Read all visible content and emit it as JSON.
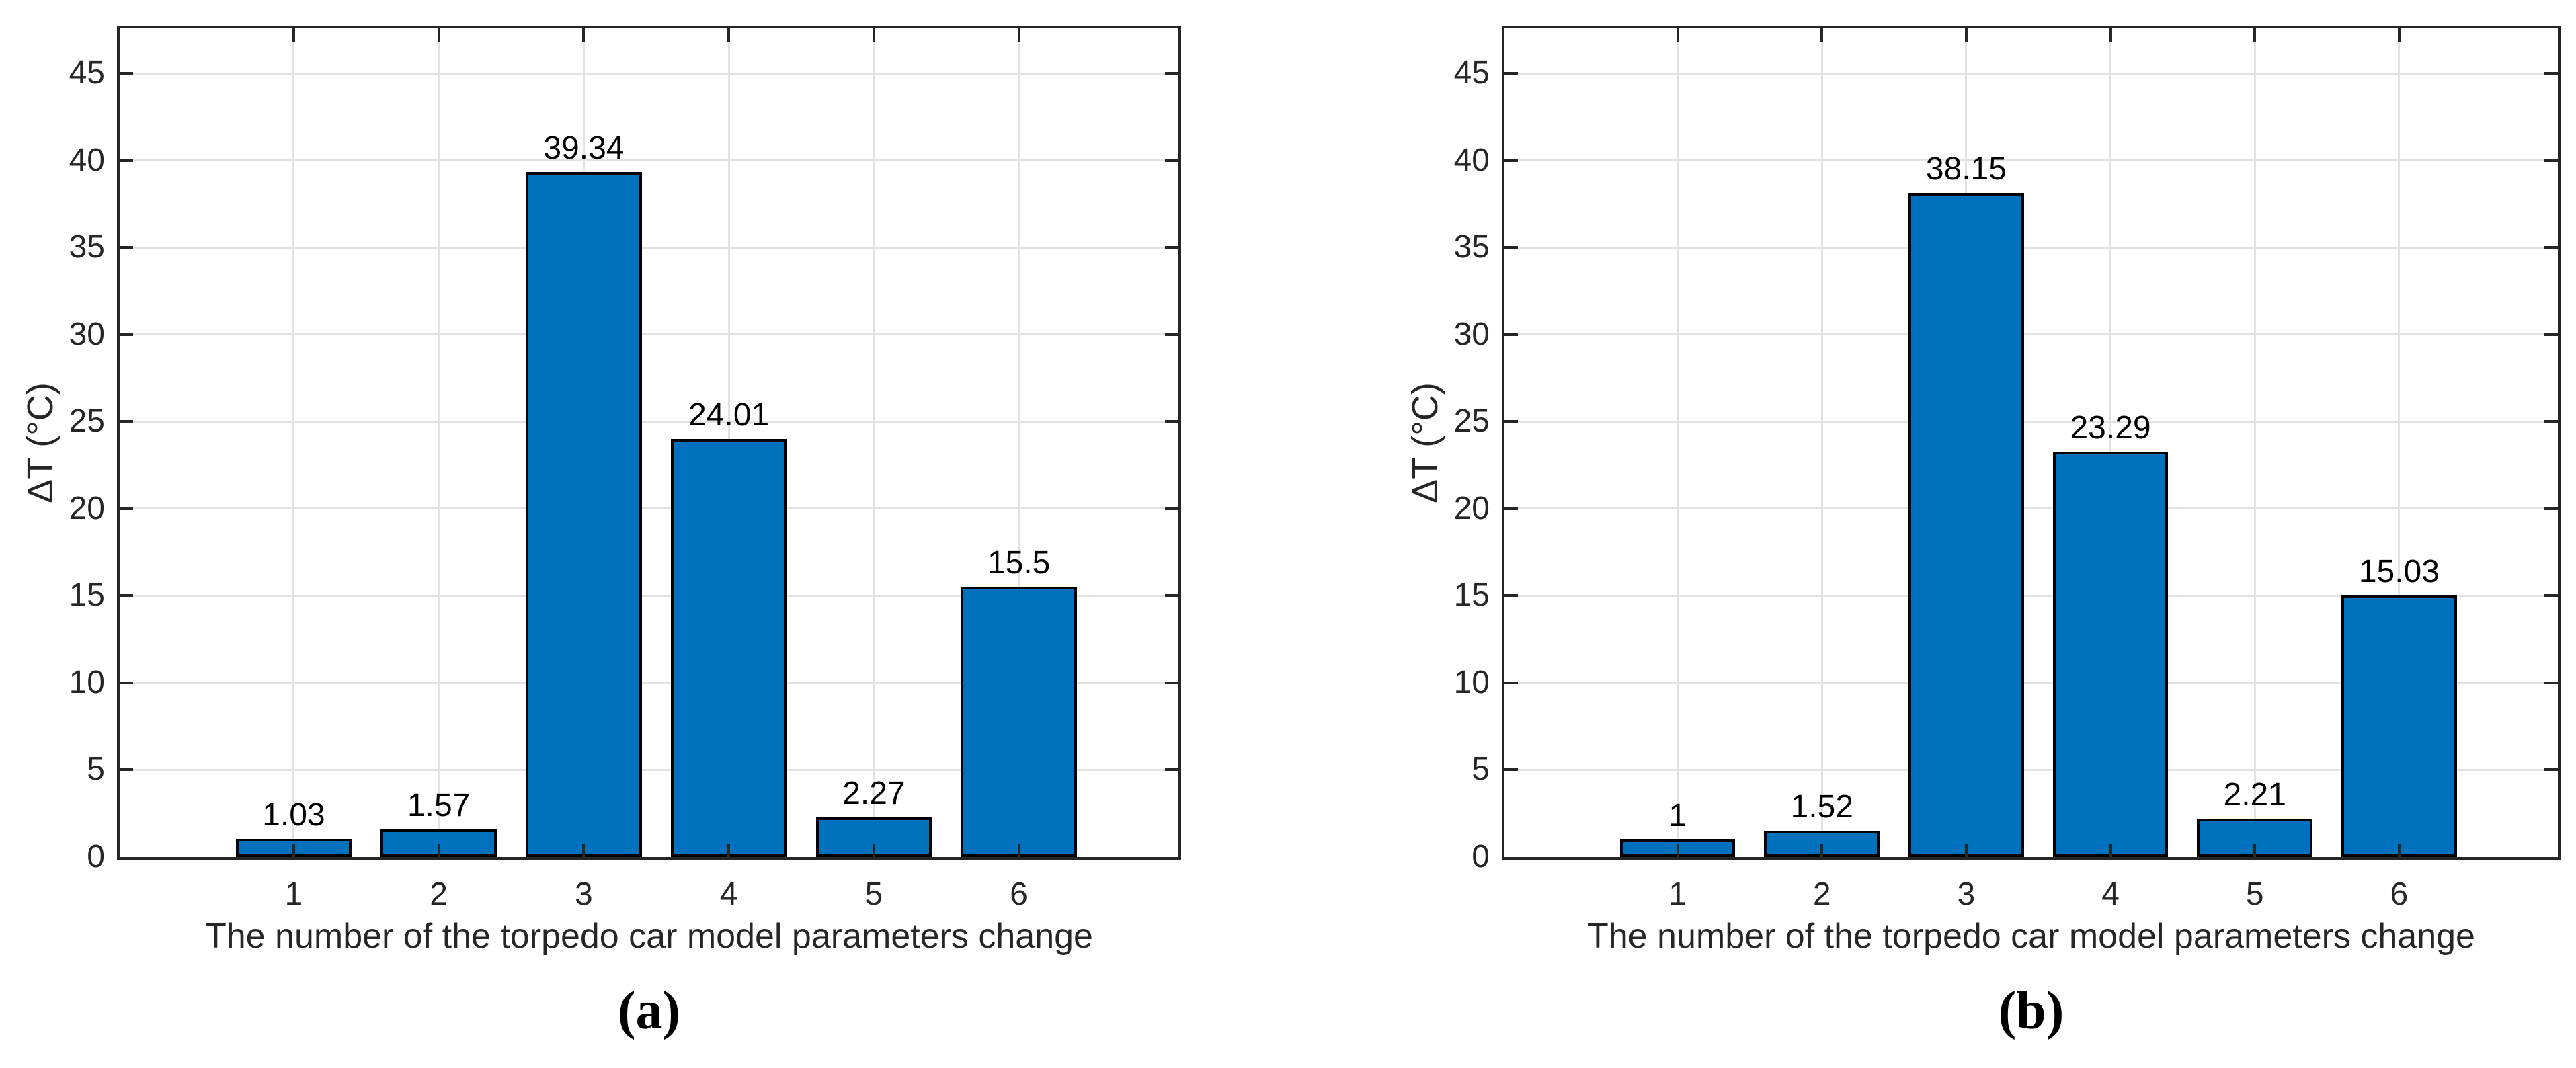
{
  "figure": {
    "background": "#FFFFFF",
    "bar_color": "#0072BD",
    "bar_edge_color": "#000000",
    "axis_color": "#262626",
    "grid_color": "#E2E2E2",
    "tick_text_color": "#262626",
    "value_text_color": "#000000"
  },
  "chart_data": [
    {
      "type": "bar",
      "panel": "a",
      "caption": "(a)",
      "title": "",
      "categories": [
        "1",
        "2",
        "3",
        "4",
        "5",
        "6"
      ],
      "values": [
        1.03,
        1.57,
        39.34,
        24.01,
        2.27,
        15.5
      ],
      "value_labels": [
        "1.03",
        "1.57",
        "39.34",
        "24.01",
        "2.27",
        "15.5"
      ],
      "xlabel": "The number of the torpedo car model parameters change",
      "ylabel": "ΔT (°C)",
      "yticks": [
        0,
        5,
        10,
        15,
        20,
        25,
        30,
        35,
        40,
        45
      ],
      "ytick_labels": [
        "0",
        "5",
        "10",
        "15",
        "20",
        "25",
        "30",
        "35",
        "40",
        "45"
      ],
      "ylim": [
        0,
        47.6
      ],
      "xlim": [
        -0.2,
        7.1
      ],
      "bar_width": 0.8,
      "grid": true,
      "legend": null
    },
    {
      "type": "bar",
      "panel": "b",
      "caption": "(b)",
      "title": "",
      "categories": [
        "1",
        "2",
        "3",
        "4",
        "5",
        "6"
      ],
      "values": [
        1,
        1.52,
        38.15,
        23.29,
        2.21,
        15.03
      ],
      "value_labels": [
        "1",
        "1.52",
        "38.15",
        "23.29",
        "2.21",
        "15.03"
      ],
      "xlabel": "The number of the torpedo car model parameters change",
      "ylabel": "ΔT (°C)",
      "yticks": [
        0,
        5,
        10,
        15,
        20,
        25,
        30,
        35,
        40,
        45
      ],
      "ytick_labels": [
        "0",
        "5",
        "10",
        "15",
        "20",
        "25",
        "30",
        "35",
        "40",
        "45"
      ],
      "ylim": [
        0,
        47.6
      ],
      "xlim": [
        -0.2,
        7.1
      ],
      "bar_width": 0.8,
      "grid": true,
      "legend": null
    }
  ]
}
